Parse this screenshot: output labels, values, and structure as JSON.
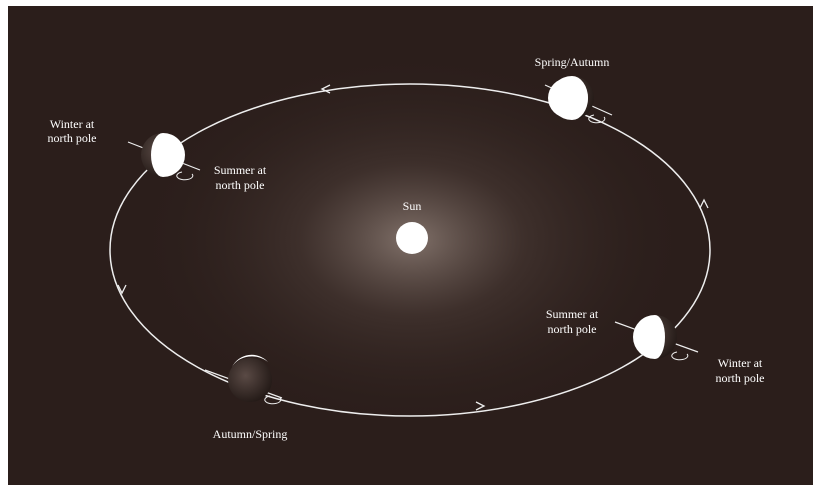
{
  "sun": "Sun",
  "nodes": [
    {
      "lines": [
        "Winter at",
        "north pole"
      ]
    },
    {
      "lines": [
        "Summer at",
        "north pole"
      ]
    },
    {
      "lines": [
        "Spring/Autumn"
      ]
    },
    {
      "lines": [
        "Summer at",
        "north pole"
      ]
    },
    {
      "lines": [
        "Winter at",
        "north pole"
      ]
    },
    {
      "lines": [
        "Autumn/Spring"
      ]
    }
  ]
}
